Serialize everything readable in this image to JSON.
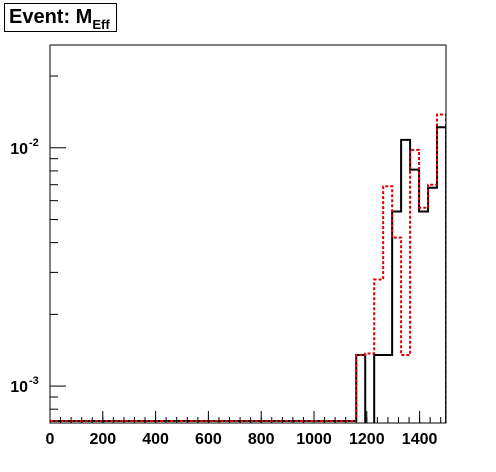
{
  "title": {
    "main": "Event: M",
    "sub": "Eff"
  },
  "chart_data": {
    "type": "histogram",
    "x_range": [
      0,
      1500
    ],
    "y_scale": "log",
    "y_range": [
      0.0007,
      0.027
    ],
    "x_ticks": [
      0,
      200,
      400,
      600,
      800,
      1000,
      1200,
      1400
    ],
    "x_tick_labels": [
      "0",
      "200",
      "400",
      "600",
      "800",
      "1000",
      "1200",
      "1400"
    ],
    "y_ticks": [
      {
        "value": 0.001,
        "base": "10",
        "exp": "-3"
      },
      {
        "value": 0.01,
        "base": "10",
        "exp": "-2"
      }
    ],
    "bin_width": 40,
    "series": [
      {
        "style": "solid",
        "color": "#000000",
        "bins": [
          [
            1180,
            0.00135
          ],
          [
            1220,
            0.0
          ],
          [
            1260,
            0.00135
          ],
          [
            1300,
            0.00135
          ],
          [
            1340,
            0.0054
          ],
          [
            1380,
            0.0108
          ],
          [
            1420,
            0.0081
          ],
          [
            1460,
            0.0054
          ],
          [
            1500,
            0.0068
          ],
          [
            1540,
            0.0122
          ]
        ]
      },
      {
        "style": "dotted",
        "color": "#dd0000",
        "bins": [
          [
            1180,
            0.00135
          ],
          [
            1220,
            0.00137
          ],
          [
            1260,
            0.0028
          ],
          [
            1300,
            0.0069
          ],
          [
            1340,
            0.0042
          ],
          [
            1380,
            0.00135
          ],
          [
            1420,
            0.0098
          ],
          [
            1460,
            0.0056
          ],
          [
            1500,
            0.007
          ],
          [
            1540,
            0.0138
          ]
        ]
      }
    ]
  }
}
